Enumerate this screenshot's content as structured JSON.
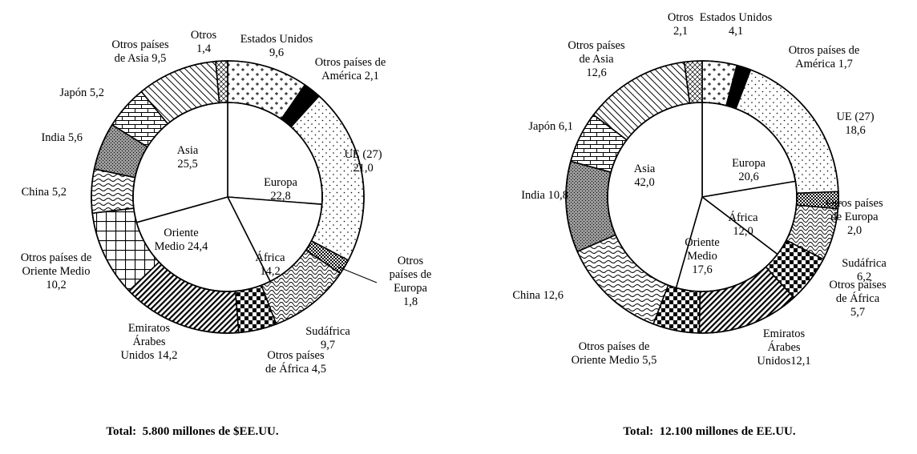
{
  "chart_data": [
    {
      "type": "donut",
      "total_label": "Total:  5.800 millones de $EE.UU.",
      "inner": [
        {
          "name": "Europa",
          "value": "22,8",
          "value_num": 22.8
        },
        {
          "name": "África",
          "value": "14,2",
          "value_num": 14.2
        },
        {
          "name": "Oriente Medio",
          "value": "24,4",
          "value_num": 24.4
        },
        {
          "name": "Asia",
          "value": "25,5",
          "value_num": 25.5
        }
      ],
      "outer": [
        {
          "name": "Estados Unidos",
          "value": "9,6",
          "value_num": 9.6,
          "pattern": "plus"
        },
        {
          "name": "Otros países de América",
          "value": "2,1",
          "value_num": 2.1,
          "pattern": "black"
        },
        {
          "name": "UE (27)",
          "value": "21,0",
          "value_num": 21.0,
          "pattern": "dots"
        },
        {
          "name": "Otros países de Europa",
          "value": "1,8",
          "value_num": 1.8,
          "pattern": "checker"
        },
        {
          "name": "Sudáfrica",
          "value": "9,7",
          "value_num": 9.7,
          "pattern": "scales"
        },
        {
          "name": "Otros países de África",
          "value": "4,5",
          "value_num": 4.5,
          "pattern": "bigcheck"
        },
        {
          "name": "Emiratos Árabes Unidos",
          "value": "14,2",
          "value_num": 14.2,
          "pattern": "diag"
        },
        {
          "name": "Otros países de Oriente Medio",
          "value": "10,2",
          "value_num": 10.2,
          "pattern": "grid"
        },
        {
          "name": "China",
          "value": "5,2",
          "value_num": 5.2,
          "pattern": "wave"
        },
        {
          "name": "India",
          "value": "5,6",
          "value_num": 5.6,
          "pattern": "gray"
        },
        {
          "name": "Japón",
          "value": "5,2",
          "value_num": 5.2,
          "pattern": "brick"
        },
        {
          "name": "Otros países de Asia",
          "value": "9,5",
          "value_num": 9.5,
          "pattern": "hatch"
        },
        {
          "name": "Otros",
          "value": "1,4",
          "value_num": 1.4,
          "pattern": "cross"
        }
      ]
    },
    {
      "type": "donut",
      "total_label": "Total:  12.100 millones de EE.UU.",
      "inner": [
        {
          "name": "Europa",
          "value": "20,6",
          "value_num": 20.6
        },
        {
          "name": "África",
          "value": "12,0",
          "value_num": 12.0
        },
        {
          "name": "Oriente Medio",
          "value": "17,6",
          "value_num": 17.6
        },
        {
          "name": "Asia",
          "value": "42,0",
          "value_num": 42.0
        }
      ],
      "outer": [
        {
          "name": "Estados Unidos",
          "value": "4,1",
          "value_num": 4.1,
          "pattern": "plus"
        },
        {
          "name": "Otros países de América",
          "value": "1,7",
          "value_num": 1.7,
          "pattern": "black"
        },
        {
          "name": "UE (27)",
          "value": "18,6",
          "value_num": 18.6,
          "pattern": "dots"
        },
        {
          "name": "Otros países de Europa",
          "value": "2,0",
          "value_num": 2.0,
          "pattern": "checker"
        },
        {
          "name": "Sudáfrica",
          "value": "6,2",
          "value_num": 6.2,
          "pattern": "scales"
        },
        {
          "name": "Otros países de África",
          "value": "5,7",
          "value_num": 5.7,
          "pattern": "bigcheck"
        },
        {
          "name": "Emiratos Árabes Unidos",
          "value": "12,1",
          "value_num": 12.1,
          "pattern": "diag"
        },
        {
          "name": "Otros países de Oriente Medio",
          "value": "5,5",
          "value_num": 5.5,
          "pattern": "bigcheck"
        },
        {
          "name": "China",
          "value": "12,6",
          "value_num": 12.6,
          "pattern": "wave"
        },
        {
          "name": "India",
          "value": "10,8",
          "value_num": 10.8,
          "pattern": "gray"
        },
        {
          "name": "Japón",
          "value": "6,1",
          "value_num": 6.1,
          "pattern": "brick"
        },
        {
          "name": "Otros países de Asia",
          "value": "12,6",
          "value_num": 12.6,
          "pattern": "hatch"
        },
        {
          "name": "Otros",
          "value": "2,1",
          "value_num": 2.1,
          "pattern": "cross"
        }
      ]
    }
  ],
  "labels_left": {
    "inner": [
      [
        "Europa",
        "22,8"
      ],
      [
        "África",
        "14,2"
      ],
      [
        "Oriente",
        "Medio 24,4"
      ],
      [
        "Asia",
        "25,5"
      ]
    ],
    "outer": [
      [
        "Estados Unidos",
        "9,6"
      ],
      [
        "Otros países de",
        "América 2,1"
      ],
      [
        "UE (27)",
        "21,0"
      ],
      [
        "Otros",
        "países de",
        "Europa",
        "1,8"
      ],
      [
        "Sudáfrica",
        "9,7"
      ],
      [
        "Otros países",
        "de África 4,5"
      ],
      [
        "Emiratos",
        "Árabes",
        "Unidos 14,2"
      ],
      [
        "Otros países de",
        "Oriente Medio",
        "10,2"
      ],
      [
        "China 5,2"
      ],
      [
        "India 5,6"
      ],
      [
        "Japón 5,2"
      ],
      [
        "Otros países",
        "de Asia 9,5"
      ],
      [
        "Otros",
        "1,4"
      ]
    ]
  },
  "labels_right": {
    "inner": [
      [
        "Europa",
        "20,6"
      ],
      [
        "África",
        "12,0"
      ],
      [
        "Oriente",
        "Medio",
        "17,6"
      ],
      [
        "Asia",
        "42,0"
      ]
    ],
    "outer": [
      [
        "Estados Unidos",
        "4,1"
      ],
      [
        "Otros países de",
        "América 1,7"
      ],
      [
        "UE (27)",
        "18,6"
      ],
      [
        "Otros países",
        "de Europa",
        "2,0"
      ],
      [
        "Sudáfrica",
        "6,2"
      ],
      [
        "Otros países",
        "de África",
        "5,7"
      ],
      [
        "Emiratos",
        "Árabes",
        "Unidos12,1"
      ],
      [
        "Otros países de",
        "Oriente Medio 5,5"
      ],
      [
        "China 12,6"
      ],
      [
        "India 10,8"
      ],
      [
        "Japón 6,1"
      ],
      [
        "Otros países",
        "de Asia",
        "12,6"
      ],
      [
        "Otros",
        "2,1"
      ]
    ]
  },
  "colors": {
    "stroke": "#000000",
    "background": "#ffffff",
    "gray_fill": "#9a9a9a"
  }
}
